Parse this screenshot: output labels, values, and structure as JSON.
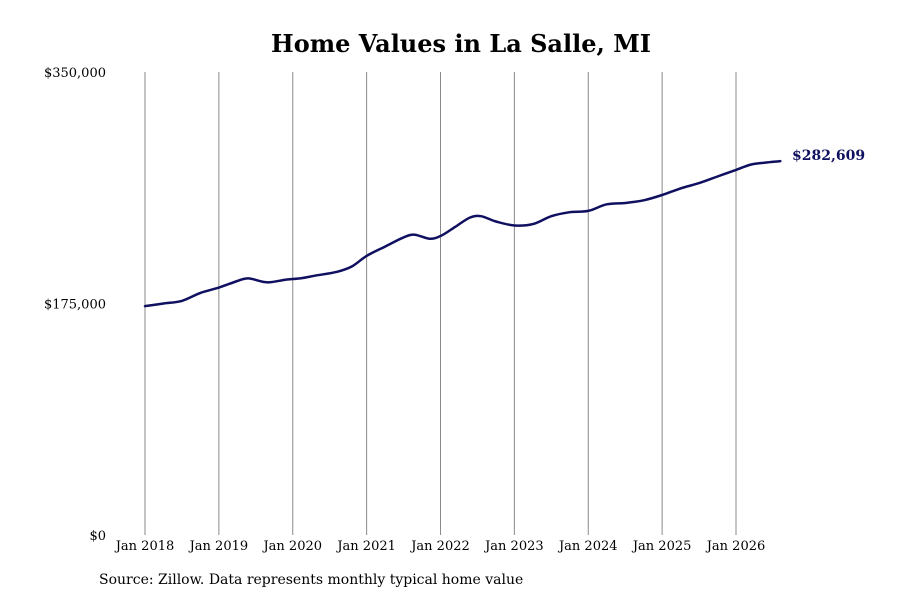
{
  "chart_data": {
    "type": "line",
    "title": "Home Values in La Salle, MI",
    "xlabel": "",
    "ylabel": "",
    "ylim": [
      0,
      350000
    ],
    "yticks": [
      {
        "value": 0,
        "label": "$0"
      },
      {
        "value": 175000,
        "label": "$175,000"
      },
      {
        "value": 350000,
        "label": "$350,000"
      }
    ],
    "xticks": [
      {
        "year": 2018,
        "label": "Jan 2018"
      },
      {
        "year": 2019,
        "label": "Jan 2019"
      },
      {
        "year": 2020,
        "label": "Jan 2020"
      },
      {
        "year": 2021,
        "label": "Jan 2021"
      },
      {
        "year": 2022,
        "label": "Jan 2022"
      },
      {
        "year": 2023,
        "label": "Jan 2023"
      },
      {
        "year": 2024,
        "label": "Jan 2024"
      },
      {
        "year": 2025,
        "label": "Jan 2025"
      },
      {
        "year": 2026,
        "label": "Jan 2026"
      }
    ],
    "xlim": [
      2018,
      2026.6
    ],
    "grid": {
      "vertical": true,
      "horizontal": false
    },
    "line_color": "#101060",
    "end_label": "$282,609",
    "series": [
      {
        "points": [
          [
            2018.0,
            173000
          ],
          [
            2018.25,
            175000
          ],
          [
            2018.5,
            177000
          ],
          [
            2018.75,
            183000
          ],
          [
            2019.0,
            187000
          ],
          [
            2019.25,
            192000
          ],
          [
            2019.4,
            194000
          ],
          [
            2019.65,
            191000
          ],
          [
            2019.9,
            193000
          ],
          [
            2020.1,
            194000
          ],
          [
            2020.3,
            196000
          ],
          [
            2020.6,
            199000
          ],
          [
            2020.8,
            203000
          ],
          [
            2021.0,
            211000
          ],
          [
            2021.25,
            218000
          ],
          [
            2021.5,
            225000
          ],
          [
            2021.65,
            227000
          ],
          [
            2021.85,
            224000
          ],
          [
            2022.0,
            226000
          ],
          [
            2022.2,
            233000
          ],
          [
            2022.4,
            240000
          ],
          [
            2022.55,
            241000
          ],
          [
            2022.75,
            237000
          ],
          [
            2023.0,
            234000
          ],
          [
            2023.25,
            235000
          ],
          [
            2023.5,
            241000
          ],
          [
            2023.75,
            244000
          ],
          [
            2024.0,
            245000
          ],
          [
            2024.25,
            250000
          ],
          [
            2024.5,
            251000
          ],
          [
            2024.75,
            253000
          ],
          [
            2025.0,
            257000
          ],
          [
            2025.25,
            262000
          ],
          [
            2025.5,
            266000
          ],
          [
            2025.75,
            271000
          ],
          [
            2026.0,
            276000
          ],
          [
            2026.2,
            280000
          ],
          [
            2026.4,
            281500
          ],
          [
            2026.6,
            282609
          ]
        ]
      }
    ]
  },
  "source_note": "Source: Zillow. Data represents monthly typical home value"
}
